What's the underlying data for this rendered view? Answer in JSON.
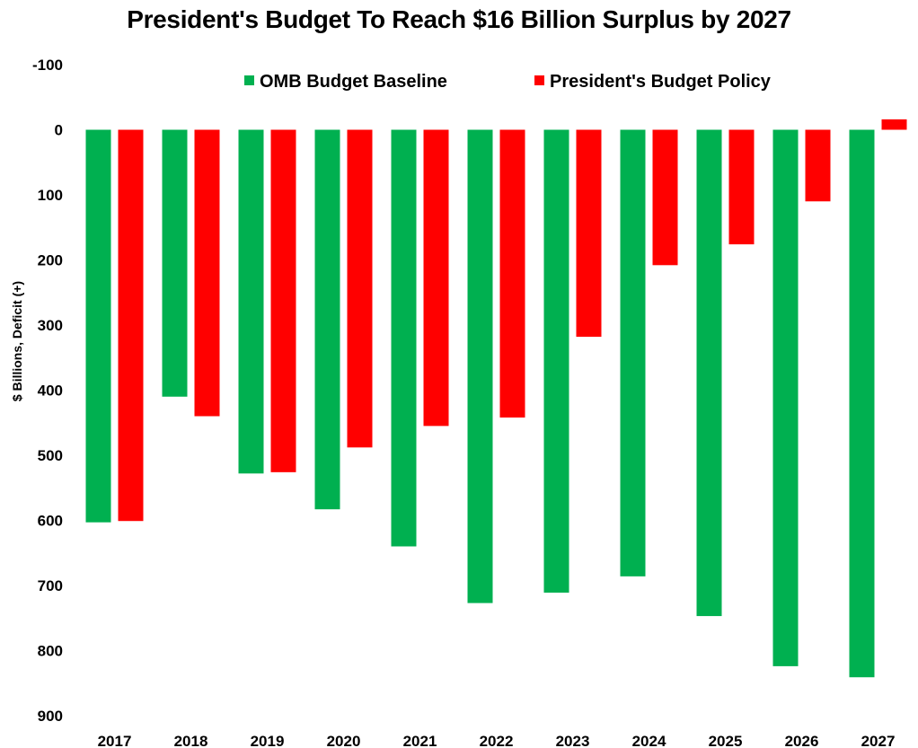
{
  "chart_data": {
    "type": "bar",
    "title": "President's Budget To Reach $16 Billion Surplus by 2027",
    "ylabel": "$ Billions, Deficit (+)",
    "xlabel": "",
    "y_axis_reversed": true,
    "ylim": [
      -100,
      900
    ],
    "yticks": [
      -100,
      0,
      100,
      200,
      300,
      400,
      500,
      600,
      700,
      800,
      900
    ],
    "grid": false,
    "legend_position": "top",
    "categories": [
      "2017",
      "2018",
      "2019",
      "2020",
      "2021",
      "2022",
      "2023",
      "2024",
      "2025",
      "2026",
      "2027"
    ],
    "series": [
      {
        "name": "OMB Budget Baseline",
        "color": "#00b050",
        "values": [
          603,
          410,
          528,
          583,
          640,
          727,
          711,
          686,
          747,
          824,
          841
        ]
      },
      {
        "name": "President's Budget Policy",
        "color": "#ff0000",
        "values": [
          601,
          440,
          526,
          488,
          455,
          442,
          318,
          208,
          176,
          110,
          -16
        ]
      }
    ]
  }
}
